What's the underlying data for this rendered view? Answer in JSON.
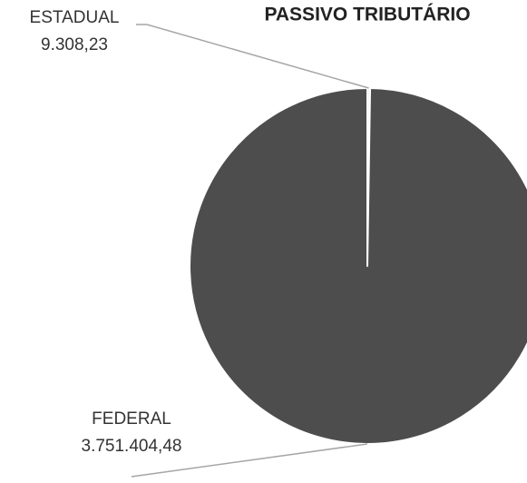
{
  "chart_data": {
    "type": "pie",
    "title": "PASSIVO TRIBUTÁRIO",
    "categories": [
      "ESTADUAL",
      "FEDERAL"
    ],
    "values": [
      9308.23,
      3751404.48
    ],
    "value_labels": [
      "9.308,23",
      "3.751.404,48"
    ],
    "colors": [
      "#f2f2f2",
      "#4d4d4d"
    ]
  }
}
